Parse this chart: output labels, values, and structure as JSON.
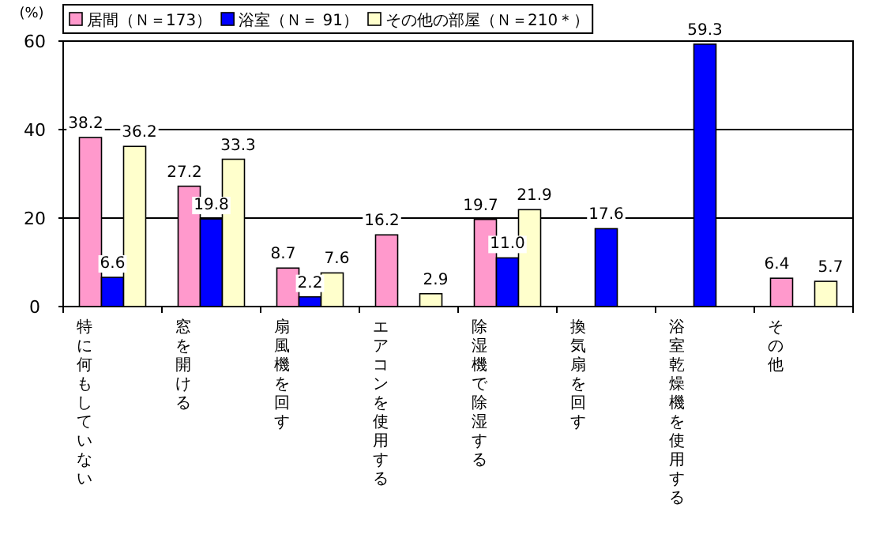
{
  "chart_data": {
    "type": "bar",
    "ylabel": "(%)",
    "categories": [
      "特に何もしていない",
      "窓を開ける",
      "扇風機を回す",
      "エアコンを使用する",
      "除湿機で除湿する",
      "換気扇を回す",
      "浴室乾燥機を使用する",
      "その他"
    ],
    "series": [
      {
        "name": "居間（Ｎ＝173）",
        "color": "#ff99cc",
        "values": [
          38.2,
          27.2,
          8.7,
          16.2,
          19.7,
          null,
          null,
          6.4
        ],
        "value_labels": [
          "38.2",
          "27.2",
          "8.7",
          "16.2",
          "19.7",
          null,
          null,
          "6.4"
        ]
      },
      {
        "name": "浴室（Ｎ＝ 91）",
        "color": "#0000ff",
        "values": [
          6.6,
          19.8,
          2.2,
          null,
          11.0,
          17.6,
          59.3,
          null
        ],
        "value_labels": [
          "6.6",
          "19.8",
          "2.2",
          null,
          "11.0",
          "17.6",
          "59.3",
          null
        ]
      },
      {
        "name": "その他の部屋（Ｎ＝210＊）",
        "color": "#ffffcc",
        "values": [
          36.2,
          33.3,
          7.6,
          2.9,
          21.9,
          null,
          null,
          5.7
        ],
        "value_labels": [
          "36.2",
          "33.3",
          "7.6",
          "2.9",
          "21.9",
          null,
          null,
          "5.7"
        ]
      }
    ],
    "ylim": [
      0,
      60
    ],
    "yticks": [
      0,
      20,
      40,
      60
    ],
    "grid": "y",
    "legend": "top"
  }
}
